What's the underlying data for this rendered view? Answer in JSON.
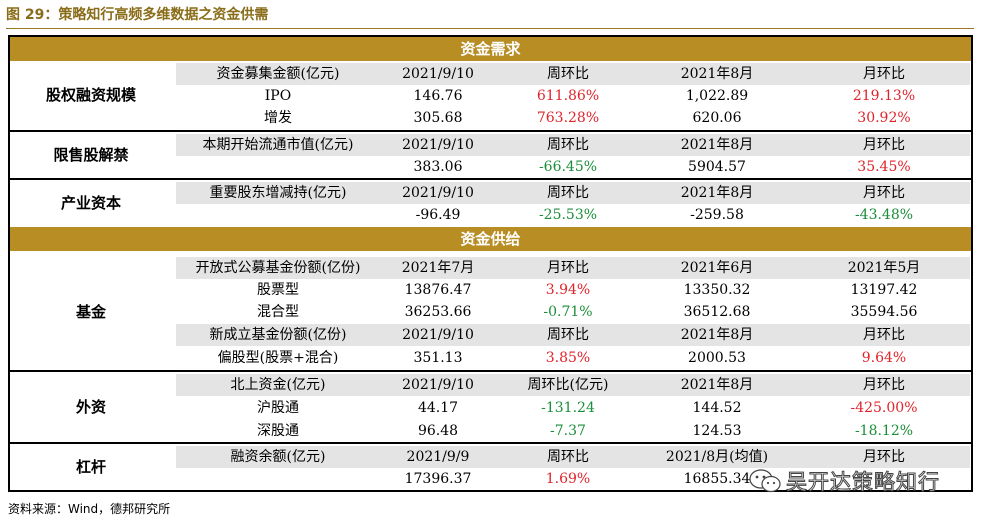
{
  "title": "图 29：策略知行高频多维数据之资金供需",
  "source": "资料来源：Wind，德邦研究所",
  "watermark": "吴开达策略知行",
  "colors": {
    "band": "#b78d24",
    "positive": "#e0242b",
    "negative": "#1a8e3a",
    "header_row": "#e4e4e4"
  },
  "demand": {
    "band": "资金需求",
    "equity_financing": {
      "label": "股权融资规模",
      "header": [
        "资金募集金额(亿元)",
        "2021/9/10",
        "周环比",
        "2021年8月",
        "月环比"
      ],
      "rows": [
        [
          "IPO",
          "146.76",
          "611.86%",
          "1,022.89",
          "219.13%"
        ],
        [
          "增发",
          "305.68",
          "763.28%",
          "620.06",
          "30.92%"
        ]
      ]
    },
    "unlock": {
      "label": "限售股解禁",
      "header": [
        "本期开始流通市值(亿元)",
        "2021/9/10",
        "周环比",
        "2021年8月",
        "月环比"
      ],
      "row": [
        "",
        "383.06",
        "-66.45%",
        "5904.57",
        "35.45%"
      ]
    },
    "industrial": {
      "label": "产业资本",
      "header": [
        "重要股东增减持(亿元)",
        "2021/9/10",
        "周环比",
        "2021年8月",
        "月环比"
      ],
      "row": [
        "",
        "-96.49",
        "-25.53%",
        "-259.58",
        "-43.48%"
      ]
    }
  },
  "supply": {
    "band": "资金供给",
    "funds": {
      "label": "基金",
      "header1": [
        "开放式公募基金份额(亿份)",
        "2021年7月",
        "月环比",
        "2021年6月",
        "2021年5月"
      ],
      "rows1": [
        [
          "股票型",
          "13876.47",
          "3.94%",
          "13350.32",
          "13197.42"
        ],
        [
          "混合型",
          "36253.66",
          "-0.71%",
          "36512.68",
          "35594.56"
        ]
      ],
      "header2": [
        "新成立基金份额(亿份)",
        "2021/9/10",
        "周环比",
        "2021年8月",
        "月环比"
      ],
      "row2": [
        "偏股型(股票+混合)",
        "351.13",
        "3.85%",
        "2000.53",
        "9.64%"
      ]
    },
    "foreign": {
      "label": "外资",
      "header": [
        "北上资金(亿元)",
        "2021/9/10",
        "周环比(亿元)",
        "2021年8月",
        "月环比"
      ],
      "rows": [
        [
          "沪股通",
          "44.17",
          "-131.24",
          "144.52",
          "-425.00%"
        ],
        [
          "深股通",
          "96.48",
          "-7.37",
          "124.53",
          "-18.12%"
        ]
      ]
    },
    "leverage": {
      "label": "杠杆",
      "header": [
        "融资余额(亿元)",
        "2021/9/9",
        "周环比",
        "2021/8月(均值)",
        "月环比"
      ],
      "row": [
        "",
        "17396.37",
        "1.69%",
        "16855.34",
        ""
      ]
    }
  }
}
